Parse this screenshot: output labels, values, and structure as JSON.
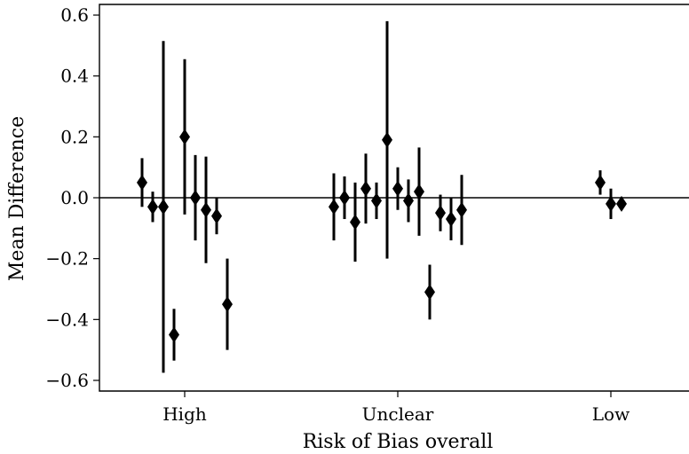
{
  "chart_data": {
    "type": "scatter",
    "title": "",
    "xlabel": "Risk of Bias overall",
    "ylabel": "Mean Difference",
    "categories": [
      "High",
      "Unclear",
      "Low"
    ],
    "ylim": [
      -0.635,
      0.635
    ],
    "yticks": [
      0.6,
      0.4,
      0.2,
      0.0,
      -0.2,
      -0.4,
      -0.6
    ],
    "ytick_labels": [
      "0.6",
      "0.4",
      "0.2",
      "0.0",
      "−0.2",
      "−0.4",
      "−0.6"
    ],
    "reference_line": 0.0,
    "grid": false,
    "marker": "diamond",
    "color": "#000000",
    "points": [
      {
        "category": "High",
        "offset": -0.2,
        "y": 0.05,
        "low": -0.03,
        "high": 0.13
      },
      {
        "category": "High",
        "offset": -0.15,
        "y": -0.03,
        "low": -0.08,
        "high": 0.02
      },
      {
        "category": "High",
        "offset": -0.1,
        "y": -0.03,
        "low": -0.575,
        "high": 0.515
      },
      {
        "category": "High",
        "offset": -0.05,
        "y": -0.45,
        "low": -0.535,
        "high": -0.365
      },
      {
        "category": "High",
        "offset": 0.0,
        "y": 0.2,
        "low": -0.055,
        "high": 0.455
      },
      {
        "category": "High",
        "offset": 0.05,
        "y": 0.0,
        "low": -0.14,
        "high": 0.14
      },
      {
        "category": "High",
        "offset": 0.1,
        "y": -0.04,
        "low": -0.215,
        "high": 0.135
      },
      {
        "category": "High",
        "offset": 0.15,
        "y": -0.06,
        "low": -0.12,
        "high": 0.0
      },
      {
        "category": "High",
        "offset": 0.2,
        "y": -0.35,
        "low": -0.5,
        "high": -0.2
      },
      {
        "category": "Unclear",
        "offset": -0.3,
        "y": -0.03,
        "low": -0.14,
        "high": 0.08
      },
      {
        "category": "Unclear",
        "offset": -0.25,
        "y": 0.0,
        "low": -0.07,
        "high": 0.07
      },
      {
        "category": "Unclear",
        "offset": -0.2,
        "y": -0.08,
        "low": -0.21,
        "high": 0.05
      },
      {
        "category": "Unclear",
        "offset": -0.15,
        "y": 0.03,
        "low": -0.085,
        "high": 0.145
      },
      {
        "category": "Unclear",
        "offset": -0.1,
        "y": -0.01,
        "low": -0.07,
        "high": 0.05
      },
      {
        "category": "Unclear",
        "offset": -0.05,
        "y": 0.19,
        "low": -0.2,
        "high": 0.58
      },
      {
        "category": "Unclear",
        "offset": 0.0,
        "y": 0.03,
        "low": -0.04,
        "high": 0.1
      },
      {
        "category": "Unclear",
        "offset": 0.05,
        "y": -0.01,
        "low": -0.08,
        "high": 0.06
      },
      {
        "category": "Unclear",
        "offset": 0.1,
        "y": 0.02,
        "low": -0.125,
        "high": 0.165
      },
      {
        "category": "Unclear",
        "offset": 0.15,
        "y": -0.31,
        "low": -0.4,
        "high": -0.22
      },
      {
        "category": "Unclear",
        "offset": 0.2,
        "y": -0.05,
        "low": -0.11,
        "high": 0.01
      },
      {
        "category": "Unclear",
        "offset": 0.25,
        "y": -0.07,
        "low": -0.14,
        "high": 0.0
      },
      {
        "category": "Unclear",
        "offset": 0.3,
        "y": -0.04,
        "low": -0.155,
        "high": 0.075
      },
      {
        "category": "Low",
        "offset": -0.05,
        "y": 0.05,
        "low": 0.01,
        "high": 0.09
      },
      {
        "category": "Low",
        "offset": 0.0,
        "y": -0.02,
        "low": -0.07,
        "high": 0.03
      },
      {
        "category": "Low",
        "offset": 0.05,
        "y": -0.02,
        "low": -0.04,
        "high": 0.0
      }
    ]
  }
}
